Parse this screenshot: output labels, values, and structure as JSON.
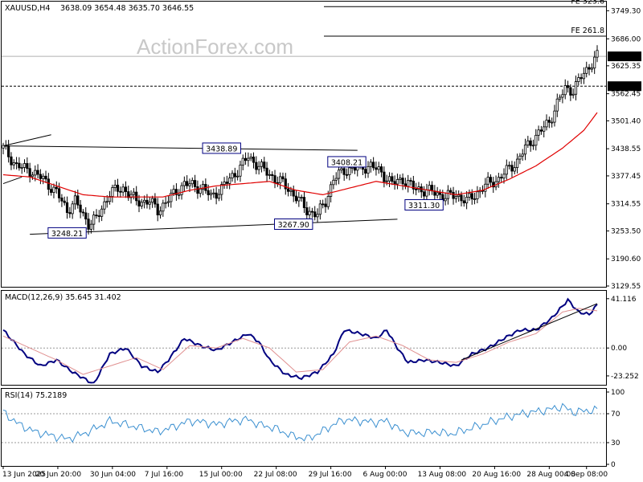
{
  "header": {
    "symbol_tf": "XAUUSD,H4",
    "ohlc": "3638.09 3654.48 3635.70 3646.55"
  },
  "watermark": "ActionForex.com",
  "colors": {
    "candle": "#000000",
    "ma": "#e00000",
    "macd": "#000080",
    "signal": "#e09090",
    "rsi": "#3a8fd0",
    "grid": "#000000",
    "price_tag_bg": "#000000",
    "price_tag_fg": "#ffffff"
  },
  "chart_data": [
    {
      "type": "candlestick",
      "title": "XAUUSD,H4",
      "y_ticks": [
        "3749.30",
        "3686.00",
        "3625.35",
        "3562.45",
        "3501.40",
        "3438.55",
        "3377.45",
        "3314.55",
        "3253.50",
        "3190.60",
        "3129.55"
      ],
      "ylim": [
        3129.55,
        3770
      ],
      "x_ticks": [
        "13 Jun 2025",
        "20 Jun 20:00",
        "30 Jun 04:00",
        "7 Jul 16:00",
        "15 Jul 00:00",
        "22 Jul 08:00",
        "29 Jul 16:00",
        "6 Aug 00:00",
        "13 Aug 08:00",
        "20 Aug 16:00",
        "28 Aug 00:00",
        "4 Sep 08:00"
      ],
      "close_path": [
        [
          0,
          3440
        ],
        [
          5,
          3400
        ],
        [
          10,
          3390
        ],
        [
          15,
          3370
        ],
        [
          20,
          3340
        ],
        [
          24,
          3300
        ],
        [
          27,
          3320
        ],
        [
          32,
          3270
        ],
        [
          35,
          3280
        ],
        [
          40,
          3340
        ],
        [
          45,
          3350
        ],
        [
          50,
          3320
        ],
        [
          55,
          3320
        ],
        [
          58,
          3300
        ],
        [
          63,
          3330
        ],
        [
          68,
          3360
        ],
        [
          75,
          3350
        ],
        [
          78,
          3330
        ],
        [
          82,
          3350
        ],
        [
          88,
          3390
        ],
        [
          92,
          3420
        ],
        [
          96,
          3400
        ],
        [
          100,
          3380
        ],
        [
          105,
          3360
        ],
        [
          110,
          3330
        ],
        [
          114,
          3300
        ],
        [
          118,
          3290
        ],
        [
          121,
          3320
        ],
        [
          124,
          3370
        ],
        [
          128,
          3390
        ],
        [
          133,
          3395
        ],
        [
          138,
          3400
        ],
        [
          142,
          3385
        ],
        [
          146,
          3360
        ],
        [
          150,
          3370
        ],
        [
          154,
          3350
        ],
        [
          158,
          3345
        ],
        [
          162,
          3340
        ],
        [
          166,
          3330
        ],
        [
          170,
          3335
        ],
        [
          174,
          3320
        ],
        [
          178,
          3340
        ],
        [
          182,
          3360
        ],
        [
          186,
          3370
        ],
        [
          190,
          3395
        ],
        [
          193,
          3410
        ],
        [
          196,
          3440
        ],
        [
          199,
          3460
        ],
        [
          202,
          3480
        ],
        [
          205,
          3500
        ],
        [
          208,
          3540
        ],
        [
          211,
          3575
        ],
        [
          214,
          3570
        ],
        [
          217,
          3600
        ],
        [
          220,
          3625
        ],
        [
          223,
          3646.55
        ]
      ],
      "ma_path": [
        [
          0,
          3380
        ],
        [
          10,
          3375
        ],
        [
          20,
          3355
        ],
        [
          30,
          3335
        ],
        [
          40,
          3330
        ],
        [
          50,
          3330
        ],
        [
          60,
          3330
        ],
        [
          70,
          3345
        ],
        [
          80,
          3355
        ],
        [
          90,
          3360
        ],
        [
          100,
          3365
        ],
        [
          110,
          3345
        ],
        [
          120,
          3335
        ],
        [
          130,
          3350
        ],
        [
          140,
          3365
        ],
        [
          150,
          3355
        ],
        [
          160,
          3345
        ],
        [
          170,
          3335
        ],
        [
          180,
          3345
        ],
        [
          190,
          3370
        ],
        [
          200,
          3400
        ],
        [
          210,
          3440
        ],
        [
          218,
          3480
        ],
        [
          223,
          3520
        ]
      ],
      "levels": [
        {
          "label": "FE 323.6",
          "value": 3758.5,
          "style": "solid"
        },
        {
          "label": "FE 261.8",
          "value": 3692,
          "style": "solid"
        },
        {
          "label": "3579.44",
          "value": 3579.44,
          "style": "dashed"
        }
      ],
      "hline_current": 3646.55,
      "price_tags": [
        "3646.55",
        "3579.44"
      ],
      "annotations": [
        {
          "text": "3438.89",
          "x": 82,
          "y": 3438.89
        },
        {
          "text": "3408.21",
          "x": 129,
          "y": 3408.21
        },
        {
          "text": "3311.30",
          "x": 158,
          "y": 3311.3
        },
        {
          "text": "3267.90",
          "x": 109,
          "y": 3267.9
        },
        {
          "text": "3248.21",
          "x": 24,
          "y": 3248.21
        }
      ],
      "trendlines": [
        {
          "from": [
            0,
            3445
          ],
          "to": [
            133,
            3435
          ]
        },
        {
          "from": [
            10,
            3246
          ],
          "to": [
            148,
            3280
          ]
        },
        {
          "from": [
            0,
            3445
          ],
          "to": [
            18,
            3470
          ]
        },
        {
          "from": [
            0,
            3360
          ],
          "to": [
            7,
            3375
          ]
        }
      ]
    },
    {
      "type": "line",
      "title": "MACD(12,26,9) 35.645 31.402",
      "y_ticks": [
        "41.116",
        "0.00",
        "-23.252"
      ],
      "ylim": [
        -30,
        45
      ],
      "series": [
        {
          "name": "MACD",
          "values": [
            [
              0,
              15
            ],
            [
              8,
              -5
            ],
            [
              14,
              -15
            ],
            [
              20,
              -10
            ],
            [
              26,
              -20
            ],
            [
              34,
              -30
            ],
            [
              40,
              -5
            ],
            [
              46,
              0
            ],
            [
              52,
              -15
            ],
            [
              58,
              -20
            ],
            [
              62,
              -10
            ],
            [
              68,
              8
            ],
            [
              74,
              2
            ],
            [
              80,
              -2
            ],
            [
              86,
              5
            ],
            [
              92,
              12
            ],
            [
              96,
              5
            ],
            [
              100,
              -10
            ],
            [
              106,
              -22
            ],
            [
              112,
              -25
            ],
            [
              118,
              -20
            ],
            [
              124,
              -5
            ],
            [
              128,
              15
            ],
            [
              134,
              12
            ],
            [
              140,
              8
            ],
            [
              144,
              15
            ],
            [
              148,
              0
            ],
            [
              152,
              -12
            ],
            [
              158,
              -10
            ],
            [
              164,
              -12
            ],
            [
              170,
              -15
            ],
            [
              176,
              -5
            ],
            [
              182,
              0
            ],
            [
              188,
              8
            ],
            [
              194,
              15
            ],
            [
              200,
              15
            ],
            [
              206,
              25
            ],
            [
              212,
              40
            ],
            [
              216,
              30
            ],
            [
              220,
              28
            ],
            [
              223,
              36
            ]
          ]
        },
        {
          "name": "Signal",
          "values": [
            [
              0,
              10
            ],
            [
              10,
              0
            ],
            [
              20,
              -10
            ],
            [
              30,
              -22
            ],
            [
              40,
              -15
            ],
            [
              50,
              -8
            ],
            [
              60,
              -18
            ],
            [
              70,
              2
            ],
            [
              80,
              0
            ],
            [
              90,
              8
            ],
            [
              100,
              0
            ],
            [
              110,
              -20
            ],
            [
              120,
              -18
            ],
            [
              130,
              5
            ],
            [
              140,
              10
            ],
            [
              150,
              2
            ],
            [
              160,
              -10
            ],
            [
              170,
              -12
            ],
            [
              180,
              -5
            ],
            [
              190,
              5
            ],
            [
              200,
              12
            ],
            [
              210,
              30
            ],
            [
              216,
              33
            ],
            [
              223,
              31
            ]
          ]
        }
      ],
      "trendline": {
        "from": [
          172,
          -10
        ],
        "to": [
          223,
          37
        ]
      }
    },
    {
      "type": "line",
      "title": "RSI(14) 75.2189",
      "y_ticks": [
        "100",
        "70",
        "30",
        "0"
      ],
      "ylim": [
        0,
        100
      ],
      "levels": [
        70,
        30
      ],
      "series": [
        {
          "name": "RSI",
          "values": [
            [
              0,
              72
            ],
            [
              6,
              55
            ],
            [
              12,
              45
            ],
            [
              18,
              40
            ],
            [
              24,
              35
            ],
            [
              30,
              42
            ],
            [
              36,
              52
            ],
            [
              40,
              60
            ],
            [
              46,
              55
            ],
            [
              52,
              50
            ],
            [
              58,
              45
            ],
            [
              64,
              52
            ],
            [
              70,
              60
            ],
            [
              76,
              58
            ],
            [
              80,
              55
            ],
            [
              86,
              60
            ],
            [
              92,
              62
            ],
            [
              96,
              55
            ],
            [
              102,
              50
            ],
            [
              108,
              40
            ],
            [
              114,
              35
            ],
            [
              118,
              42
            ],
            [
              124,
              55
            ],
            [
              128,
              62
            ],
            [
              134,
              60
            ],
            [
              140,
              58
            ],
            [
              144,
              60
            ],
            [
              150,
              45
            ],
            [
              156,
              43
            ],
            [
              162,
              45
            ],
            [
              168,
              42
            ],
            [
              174,
              48
            ],
            [
              180,
              55
            ],
            [
              186,
              62
            ],
            [
              192,
              68
            ],
            [
              198,
              72
            ],
            [
              204,
              75
            ],
            [
              210,
              80
            ],
            [
              214,
              72
            ],
            [
              218,
              74
            ],
            [
              223,
              75
            ]
          ]
        }
      ]
    }
  ]
}
